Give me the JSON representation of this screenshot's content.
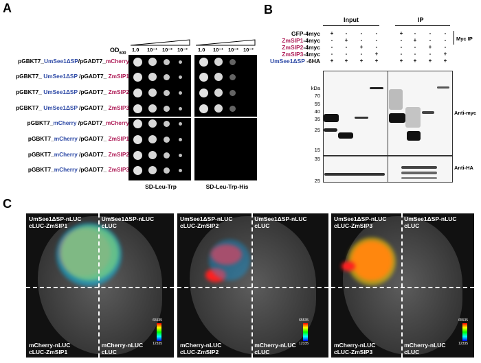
{
  "panels": {
    "a": "A",
    "b": "B",
    "c": "C"
  },
  "panel_a": {
    "od_label": "OD",
    "od_sub": "600",
    "dilutions": [
      "1.0",
      "10⁻¹",
      "10⁻²",
      "10⁻³"
    ],
    "rows": [
      {
        "p1": "pGBKT7_",
        "bait": "UmSee1ΔSP",
        "p2": "/pGADT7_",
        "prey": "mCherry"
      },
      {
        "p1": "pGBKT7_ ",
        "bait": "UmSee1ΔSP",
        "p2": " /pGADT7_ ",
        "prey": "ZmSIP1"
      },
      {
        "p1": "pGBKT7_ ",
        "bait": "UmSee1ΔSP",
        "p2": " /pGADT7_ ",
        "prey": "ZmSIP2"
      },
      {
        "p1": "pGBKT7_ ",
        "bait": "UmSee1ΔSP",
        "p2": " /pGADT7_ ",
        "prey": "ZmSIP3"
      },
      {
        "p1": "pGBKT7_",
        "bait": "mCherry",
        "p2": " /pGADT7_",
        "prey": "mCherry"
      },
      {
        "p1": "pGBKT7_",
        "bait": "mCherry",
        "p2": " /pGADT7_ ",
        "prey": "ZmSIP1"
      },
      {
        "p1": "pGBKT7_",
        "bait": "mCherry",
        "p2": " /pGADT7_ ",
        "prey": "ZmSIP2"
      },
      {
        "p1": "pGBKT7_",
        "bait": "mCherry",
        "p2": " /pGADT7_ ",
        "prey": "ZmSIP3"
      }
    ],
    "media": [
      "SD-Leu-Trp",
      "SD-Leu-Trp-His"
    ]
  },
  "panel_b": {
    "input_label": "Input",
    "ip_label": "IP",
    "myc_ip": "Myc IP",
    "rows": [
      {
        "name": "GFP-4myc",
        "black": true,
        "input": [
          "+",
          "-",
          "-",
          "-"
        ],
        "ip": [
          "+",
          "-",
          "-",
          "-"
        ]
      },
      {
        "name": "ZmSIP1",
        "suffix": "-4myc",
        "input": [
          "-",
          "+",
          "-",
          "-"
        ],
        "ip": [
          "-",
          "+",
          "-",
          "-"
        ]
      },
      {
        "name": "ZmSIP2",
        "suffix": "-4myc",
        "input": [
          "-",
          "-",
          "+",
          "-"
        ],
        "ip": [
          "-",
          "-",
          "+",
          "-"
        ]
      },
      {
        "name": "ZmSIP3",
        "suffix": "-4myc",
        "input": [
          "-",
          "-",
          "-",
          "+"
        ],
        "ip": [
          "-",
          "-",
          "-",
          "+"
        ]
      },
      {
        "name": "UmSee1ΔSP",
        "suffix": " -6HA",
        "blue": true,
        "input": [
          "+",
          "+",
          "+",
          "+"
        ],
        "ip": [
          "+",
          "+",
          "+",
          "+"
        ]
      }
    ],
    "kda_label": "kDa",
    "markers_top": [
      "70",
      "55",
      "40",
      "35",
      "25",
      "15"
    ],
    "markers_bottom": [
      "35",
      "25"
    ],
    "anti_myc": "Anti-myc",
    "anti_ha": "Anti-HA"
  },
  "panel_c": {
    "leaves": [
      {
        "tl": [
          "UmSee1ΔSP-nLUC",
          "cLUC-ZmSIP1"
        ],
        "tr": [
          "UmSee1ΔSP-nLUC",
          "cLUC"
        ],
        "bl": [
          "mCherry-nLUC",
          "cLUC-ZmSIP1"
        ],
        "br": [
          "mCherry-nLUC",
          "cLUC"
        ],
        "cmax": "65535",
        "cmin": "12335"
      },
      {
        "tl": [
          "UmSee1ΔSP-nLUC",
          "cLUC-ZmSIP2"
        ],
        "tr": [
          "UmSee1ΔSP-nLUC",
          "cLUC"
        ],
        "bl": [
          "mCherry-nLUC",
          "cLUC-ZmSIP2"
        ],
        "br": [
          "mCherry-nLUC",
          "cLUC"
        ],
        "cmax": "65535",
        "cmin": "12335"
      },
      {
        "tl": [
          "UmSee1ΔSP-nLUC",
          "cLUC-ZmSIP3"
        ],
        "tr": [
          "UmSee1ΔSP-nLUC",
          "cLUC"
        ],
        "bl": [
          "mCherry-nLUC",
          "cLUC-ZmSIP3"
        ],
        "br": [
          "mCherry-nLUC",
          "cLUC"
        ],
        "cmax": "65535",
        "cmin": "12335"
      }
    ]
  },
  "colors": {
    "bait_blue": "#2e4aa6",
    "prey_magenta": "#b0205a"
  }
}
